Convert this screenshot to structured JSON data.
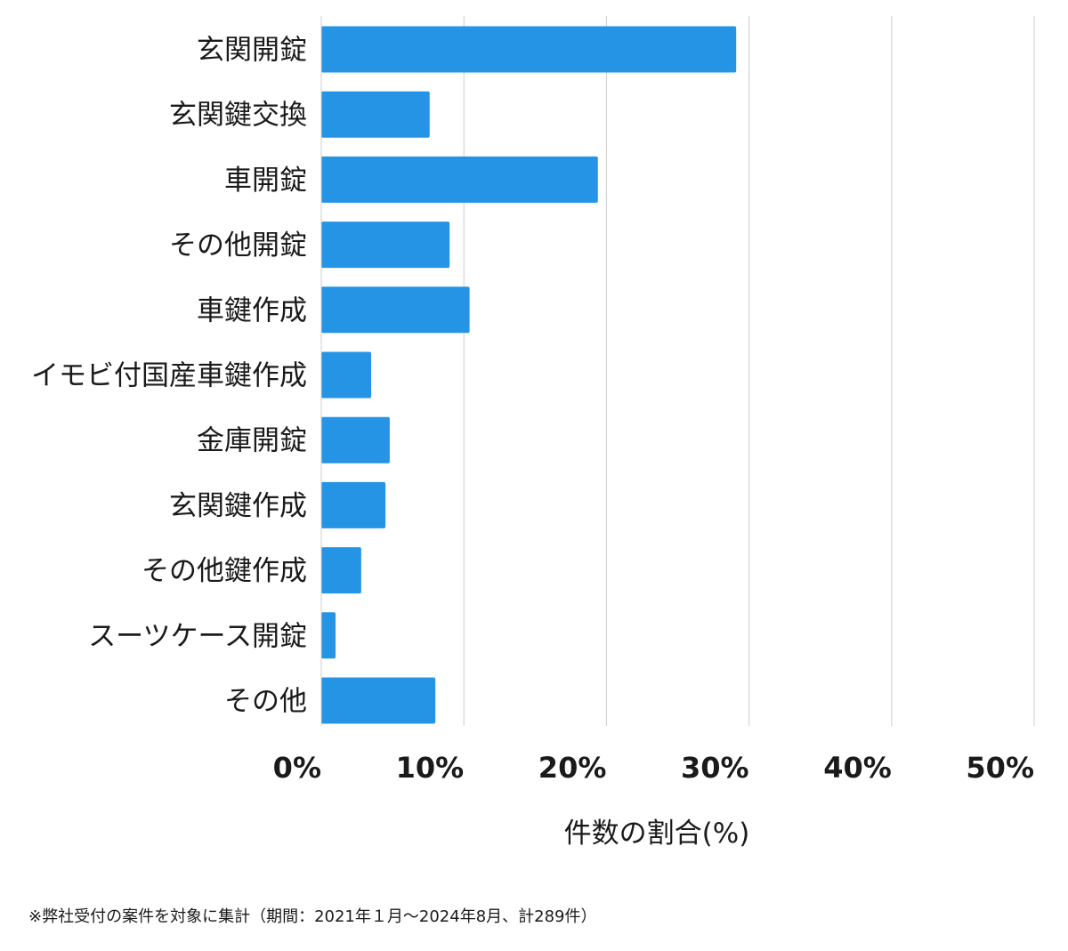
{
  "chart_data": {
    "type": "bar",
    "orientation": "horizontal",
    "categories": [
      "玄関開錠",
      "玄関鍵交換",
      "車開錠",
      "その他開錠",
      "車鍵作成",
      "イモビ付国産車鍵作成",
      "金庫開錠",
      "玄関鍵作成",
      "その他鍵作成",
      "スーツケース開錠",
      "その他"
    ],
    "values": [
      29.1,
      7.6,
      19.4,
      9.0,
      10.4,
      3.5,
      4.8,
      4.5,
      2.8,
      1.0,
      8.0
    ],
    "xlabel": "件数の割合(%)",
    "ylabel": "",
    "xlim": [
      0,
      50
    ],
    "ticks": [
      0,
      10,
      20,
      30,
      40,
      50
    ],
    "tick_labels": [
      "0%",
      "10%",
      "20%",
      "30%",
      "40%",
      "50%"
    ],
    "grid": true,
    "bar_color": "#2594e4",
    "grid_color": "#cccccc"
  },
  "footnote": "※弊社受付の案件を対象に集計（期間：2021年１月〜2024年8月、計289件）"
}
